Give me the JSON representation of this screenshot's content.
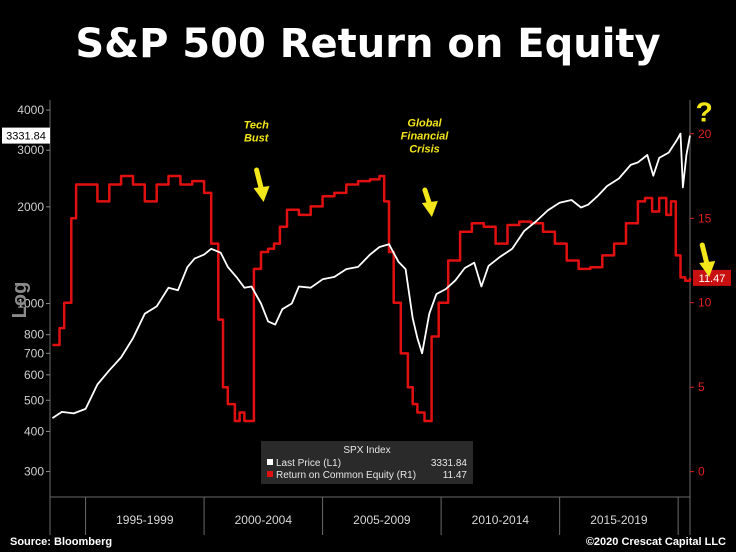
{
  "chart_data": {
    "type": "line",
    "title": "S&P 500 Return on Equity",
    "ylabel": "Log",
    "y_left": {
      "scale": "log",
      "ticks": [
        300,
        400,
        500,
        600,
        700,
        800,
        1000,
        2000,
        3000,
        4000
      ],
      "ylim": [
        250,
        4300
      ]
    },
    "y_right": {
      "scale": "linear",
      "ticks": [
        0,
        5,
        10,
        15,
        20
      ],
      "ylim": [
        -1.5,
        22
      ]
    },
    "categories": [
      "1995-1999",
      "2000-2004",
      "2005-2009",
      "2010-2014",
      "2015-2019"
    ],
    "xlim": [
      1993.5,
      2020.5
    ],
    "last_value_labels": {
      "left": "3331.84",
      "right": "11.47"
    },
    "legend": {
      "title": "SPX Index",
      "rows": [
        {
          "name": "Last Price  (L1)",
          "value": "3331.84",
          "color": "#ffffff"
        },
        {
          "name": "Return on Common Equity  (R1)",
          "value": "11.47",
          "color": "#e01010"
        }
      ]
    },
    "series": [
      {
        "name": "Last Price",
        "axis": "left",
        "color": "#ffffff",
        "x": [
          1993.6,
          1994.0,
          1994.5,
          1995.0,
          1995.5,
          1996.0,
          1996.5,
          1997.0,
          1997.5,
          1998.0,
          1998.5,
          1998.9,
          1999.3,
          1999.6,
          2000.0,
          2000.3,
          2000.7,
          2001.0,
          2001.4,
          2001.7,
          2002.0,
          2002.4,
          2002.7,
          2003.0,
          2003.3,
          2003.7,
          2004.0,
          2004.5,
          2005.0,
          2005.5,
          2006.0,
          2006.5,
          2007.0,
          2007.4,
          2007.8,
          2008.2,
          2008.5,
          2008.8,
          2009.0,
          2009.2,
          2009.5,
          2009.8,
          2010.2,
          2010.6,
          2011.0,
          2011.4,
          2011.7,
          2012.0,
          2012.5,
          2013.0,
          2013.5,
          2014.0,
          2014.5,
          2015.0,
          2015.5,
          2015.9,
          2016.2,
          2016.6,
          2017.0,
          2017.5,
          2018.0,
          2018.3,
          2018.7,
          2018.95,
          2019.2,
          2019.6,
          2019.95,
          2020.1,
          2020.2,
          2020.35,
          2020.5
        ],
        "y": [
          440,
          460,
          455,
          470,
          560,
          620,
          680,
          780,
          930,
          980,
          1120,
          1100,
          1300,
          1380,
          1420,
          1480,
          1440,
          1300,
          1200,
          1120,
          1130,
          1000,
          880,
          860,
          960,
          1000,
          1130,
          1120,
          1190,
          1210,
          1280,
          1300,
          1420,
          1500,
          1530,
          1350,
          1280,
          900,
          780,
          700,
          930,
          1070,
          1110,
          1180,
          1290,
          1340,
          1130,
          1310,
          1400,
          1480,
          1680,
          1800,
          1950,
          2060,
          2100,
          1990,
          2030,
          2160,
          2320,
          2450,
          2700,
          2750,
          2900,
          2500,
          2840,
          2950,
          3230,
          3380,
          2300,
          2900,
          3331.84
        ]
      },
      {
        "name": "Return on Common Equity",
        "axis": "right",
        "color": "#e01010",
        "x": [
          1993.6,
          1993.9,
          1994.1,
          1994.4,
          1994.6,
          1995.0,
          1995.5,
          1996.0,
          1996.5,
          1997.0,
          1997.5,
          1998.0,
          1998.5,
          1999.0,
          1999.5,
          2000.0,
          2000.3,
          2000.6,
          2000.8,
          2001.0,
          2001.3,
          2001.5,
          2001.7,
          2001.9,
          2002.1,
          2002.4,
          2002.7,
          2002.95,
          2003.2,
          2003.5,
          2004.0,
          2004.5,
          2005.0,
          2005.5,
          2006.0,
          2006.5,
          2007.0,
          2007.4,
          2007.6,
          2007.8,
          2008.0,
          2008.3,
          2008.6,
          2008.8,
          2009.0,
          2009.3,
          2009.6,
          2009.9,
          2010.3,
          2010.8,
          2011.3,
          2011.8,
          2012.3,
          2012.8,
          2013.3,
          2013.8,
          2014.3,
          2014.8,
          2015.3,
          2015.8,
          2016.3,
          2016.8,
          2017.3,
          2017.8,
          2018.3,
          2018.6,
          2018.9,
          2019.2,
          2019.5,
          2019.7,
          2019.9,
          2020.1,
          2020.3,
          2020.5
        ],
        "y": [
          7.5,
          8.5,
          10,
          15,
          17,
          17,
          16,
          17,
          17.5,
          17,
          16,
          17,
          17.5,
          17,
          17.2,
          16.5,
          13.5,
          9,
          5,
          4,
          3,
          3.5,
          3,
          3,
          12,
          13,
          13.2,
          13.5,
          14.5,
          15.5,
          15.2,
          15.7,
          16.3,
          16.5,
          17,
          17.2,
          17.3,
          17.5,
          16,
          13,
          10,
          7,
          5,
          4,
          3.5,
          3,
          8,
          10,
          12.5,
          14.2,
          14.7,
          14.5,
          13.5,
          14.6,
          14.8,
          14.7,
          14.2,
          13.5,
          12.5,
          12.0,
          12.1,
          12.8,
          13.5,
          14.7,
          16.0,
          16.2,
          15.4,
          16.2,
          15.2,
          16.0,
          12.8,
          11.5,
          11.3,
          11.47
        ]
      }
    ],
    "annotations": [
      {
        "text": [
          "Tech",
          "Bust"
        ],
        "x": 2002.2,
        "axis": "left",
        "y": 3500
      },
      {
        "text": [
          "Global",
          "Financial",
          "Crisis"
        ],
        "x": 2009.3,
        "axis": "left",
        "y": 3550
      },
      {
        "text": [
          "?"
        ],
        "x": 2021.1,
        "axis": "left",
        "y": 4200
      }
    ]
  },
  "footer": {
    "source": "Source: Bloomberg",
    "copyright": "©2020 Crescat Capital LLC"
  }
}
